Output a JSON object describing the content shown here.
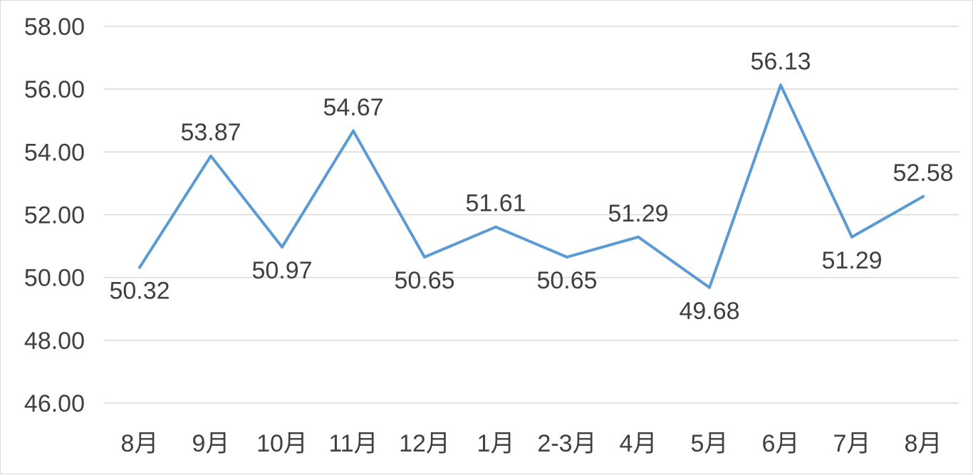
{
  "chart_data": {
    "type": "line",
    "categories": [
      "8月",
      "9月",
      "10月",
      "11月",
      "12月",
      "1月",
      "2-3月",
      "4月",
      "5月",
      "6月",
      "7月",
      "8月"
    ],
    "series": [
      {
        "values": [
          50.32,
          53.87,
          50.97,
          54.67,
          50.65,
          51.61,
          50.65,
          51.29,
          49.68,
          56.13,
          51.29,
          52.58
        ],
        "data_labels": [
          "50.32",
          "53.87",
          "50.97",
          "54.67",
          "50.65",
          "51.61",
          "50.65",
          "51.29",
          "49.68",
          "56.13",
          "51.29",
          "52.58"
        ],
        "label_positions": [
          "below",
          "above",
          "below",
          "above",
          "below",
          "above",
          "below",
          "above",
          "below",
          "above",
          "below",
          "above"
        ],
        "color": "#5b9bd5"
      }
    ],
    "y_ticks": [
      "46.00",
      "48.00",
      "50.00",
      "52.00",
      "54.00",
      "56.00",
      "58.00"
    ],
    "ylim": [
      46,
      58
    ],
    "grid": true,
    "legend": "none"
  }
}
